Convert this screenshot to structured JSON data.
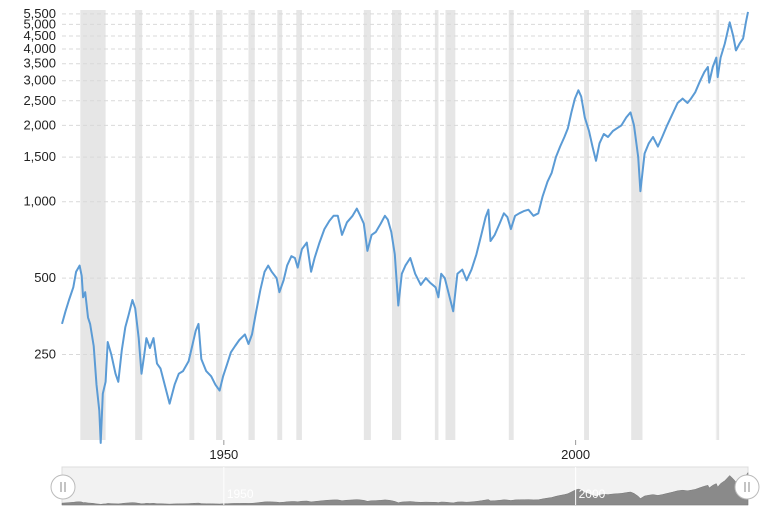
{
  "chart_data": {
    "type": "line",
    "title": "",
    "xlabel": "",
    "ylabel": "",
    "yscale": "log",
    "xlim": [
      1927,
      2024.5
    ],
    "ylim": [
      115,
      5700
    ],
    "grid": true,
    "legend": "none",
    "colors": {
      "line": "#5b9bd5",
      "recession": "#e6e6e6",
      "grid": "#d9d9d9",
      "navigator_fill": "#8a8a8a"
    },
    "y_ticks": [
      {
        "value": 250,
        "label": "250"
      },
      {
        "value": 500,
        "label": "500"
      },
      {
        "value": 1000,
        "label": "1,000"
      },
      {
        "value": 1500,
        "label": "1,500"
      },
      {
        "value": 2000,
        "label": "2,000"
      },
      {
        "value": 2500,
        "label": "2,500"
      },
      {
        "value": 3000,
        "label": "3,000"
      },
      {
        "value": 3500,
        "label": "3,500"
      },
      {
        "value": 4000,
        "label": "4,000"
      },
      {
        "value": 4500,
        "label": "4,500"
      },
      {
        "value": 5000,
        "label": "5,000"
      },
      {
        "value": 5500,
        "label": "5,500"
      }
    ],
    "x_ticks": [
      {
        "value": 1950,
        "label": "1950"
      },
      {
        "value": 2000,
        "label": "2000"
      }
    ],
    "navigator_ticks": [
      {
        "value": 1950,
        "label": "1950"
      },
      {
        "value": 2000,
        "label": "2000"
      }
    ],
    "recessions": [
      [
        1929.6,
        1933.2
      ],
      [
        1937.4,
        1938.4
      ],
      [
        1945.1,
        1945.8
      ],
      [
        1948.9,
        1949.8
      ],
      [
        1953.5,
        1954.4
      ],
      [
        1957.6,
        1958.3
      ],
      [
        1960.3,
        1961.1
      ],
      [
        1969.9,
        1970.9
      ],
      [
        1973.9,
        1975.2
      ],
      [
        1980.0,
        1980.5
      ],
      [
        1981.5,
        1982.9
      ],
      [
        1990.5,
        1991.2
      ],
      [
        2001.2,
        2001.9
      ],
      [
        2007.9,
        2009.5
      ],
      [
        2020.1,
        2020.4
      ]
    ],
    "series": [
      {
        "points": [
          [
            1927.0,
            330
          ],
          [
            1927.5,
            370
          ],
          [
            1928.0,
            410
          ],
          [
            1928.6,
            460
          ],
          [
            1929.0,
            530
          ],
          [
            1929.5,
            560
          ],
          [
            1929.8,
            510
          ],
          [
            1930.0,
            420
          ],
          [
            1930.3,
            440
          ],
          [
            1930.7,
            350
          ],
          [
            1931.0,
            330
          ],
          [
            1931.5,
            270
          ],
          [
            1931.9,
            190
          ],
          [
            1932.3,
            150
          ],
          [
            1932.5,
            112
          ],
          [
            1932.8,
            175
          ],
          [
            1933.2,
            195
          ],
          [
            1933.5,
            280
          ],
          [
            1934.0,
            250
          ],
          [
            1934.6,
            210
          ],
          [
            1935.0,
            195
          ],
          [
            1935.5,
            260
          ],
          [
            1936.0,
            320
          ],
          [
            1936.5,
            360
          ],
          [
            1937.0,
            410
          ],
          [
            1937.4,
            380
          ],
          [
            1937.9,
            290
          ],
          [
            1938.3,
            210
          ],
          [
            1938.7,
            250
          ],
          [
            1939.0,
            290
          ],
          [
            1939.5,
            265
          ],
          [
            1940.0,
            290
          ],
          [
            1940.5,
            230
          ],
          [
            1941.0,
            220
          ],
          [
            1941.6,
            190
          ],
          [
            1942.3,
            160
          ],
          [
            1943.0,
            190
          ],
          [
            1943.6,
            210
          ],
          [
            1944.2,
            215
          ],
          [
            1945.0,
            235
          ],
          [
            1945.5,
            270
          ],
          [
            1946.0,
            310
          ],
          [
            1946.4,
            330
          ],
          [
            1946.8,
            240
          ],
          [
            1947.5,
            215
          ],
          [
            1948.2,
            205
          ],
          [
            1948.8,
            190
          ],
          [
            1949.4,
            180
          ],
          [
            1949.9,
            205
          ],
          [
            1950.5,
            230
          ],
          [
            1951.0,
            255
          ],
          [
            1951.6,
            270
          ],
          [
            1952.2,
            285
          ],
          [
            1953.0,
            300
          ],
          [
            1953.5,
            275
          ],
          [
            1954.0,
            300
          ],
          [
            1954.6,
            370
          ],
          [
            1955.2,
            450
          ],
          [
            1955.8,
            530
          ],
          [
            1956.3,
            560
          ],
          [
            1956.8,
            530
          ],
          [
            1957.5,
            500
          ],
          [
            1957.9,
            440
          ],
          [
            1958.5,
            490
          ],
          [
            1959.0,
            560
          ],
          [
            1959.6,
            610
          ],
          [
            1960.1,
            600
          ],
          [
            1960.5,
            550
          ],
          [
            1961.1,
            650
          ],
          [
            1961.8,
            690
          ],
          [
            1962.4,
            530
          ],
          [
            1962.9,
            600
          ],
          [
            1963.6,
            690
          ],
          [
            1964.3,
            780
          ],
          [
            1965.0,
            840
          ],
          [
            1965.6,
            880
          ],
          [
            1966.2,
            880
          ],
          [
            1966.8,
            740
          ],
          [
            1967.5,
            830
          ],
          [
            1968.3,
            880
          ],
          [
            1968.9,
            940
          ],
          [
            1969.4,
            880
          ],
          [
            1969.9,
            820
          ],
          [
            1970.4,
            640
          ],
          [
            1971.0,
            740
          ],
          [
            1971.6,
            760
          ],
          [
            1972.3,
            820
          ],
          [
            1972.9,
            880
          ],
          [
            1973.3,
            850
          ],
          [
            1973.8,
            760
          ],
          [
            1974.3,
            620
          ],
          [
            1974.8,
            390
          ],
          [
            1975.3,
            520
          ],
          [
            1975.8,
            560
          ],
          [
            1976.5,
            600
          ],
          [
            1977.2,
            520
          ],
          [
            1978.0,
            470
          ],
          [
            1978.7,
            500
          ],
          [
            1979.3,
            480
          ],
          [
            1980.1,
            460
          ],
          [
            1980.5,
            420
          ],
          [
            1980.9,
            520
          ],
          [
            1981.4,
            500
          ],
          [
            1982.0,
            430
          ],
          [
            1982.6,
            370
          ],
          [
            1983.2,
            520
          ],
          [
            1983.9,
            540
          ],
          [
            1984.5,
            490
          ],
          [
            1985.2,
            540
          ],
          [
            1985.9,
            620
          ],
          [
            1986.6,
            740
          ],
          [
            1987.2,
            870
          ],
          [
            1987.6,
            930
          ],
          [
            1987.9,
            700
          ],
          [
            1988.5,
            740
          ],
          [
            1989.2,
            820
          ],
          [
            1989.8,
            900
          ],
          [
            1990.3,
            870
          ],
          [
            1990.8,
            780
          ],
          [
            1991.4,
            880
          ],
          [
            1992.0,
            900
          ],
          [
            1992.7,
            920
          ],
          [
            1993.3,
            930
          ],
          [
            1994.0,
            880
          ],
          [
            1994.7,
            900
          ],
          [
            1995.3,
            1050
          ],
          [
            1996.0,
            1200
          ],
          [
            1996.6,
            1300
          ],
          [
            1997.2,
            1500
          ],
          [
            1997.8,
            1650
          ],
          [
            1998.4,
            1800
          ],
          [
            1998.9,
            1950
          ],
          [
            1999.4,
            2250
          ],
          [
            1999.9,
            2550
          ],
          [
            2000.4,
            2750
          ],
          [
            2000.8,
            2600
          ],
          [
            2001.3,
            2150
          ],
          [
            2001.9,
            1900
          ],
          [
            2002.4,
            1650
          ],
          [
            2002.9,
            1450
          ],
          [
            2003.4,
            1700
          ],
          [
            2004.0,
            1850
          ],
          [
            2004.6,
            1800
          ],
          [
            2005.3,
            1900
          ],
          [
            2005.9,
            1950
          ],
          [
            2006.5,
            2000
          ],
          [
            2007.2,
            2150
          ],
          [
            2007.8,
            2250
          ],
          [
            2008.3,
            2000
          ],
          [
            2008.9,
            1500
          ],
          [
            2009.2,
            1100
          ],
          [
            2009.8,
            1550
          ],
          [
            2010.4,
            1700
          ],
          [
            2011.0,
            1800
          ],
          [
            2011.7,
            1650
          ],
          [
            2012.3,
            1800
          ],
          [
            2013.0,
            2000
          ],
          [
            2013.7,
            2200
          ],
          [
            2014.5,
            2450
          ],
          [
            2015.2,
            2550
          ],
          [
            2015.9,
            2450
          ],
          [
            2016.4,
            2550
          ],
          [
            2017.0,
            2700
          ],
          [
            2017.7,
            3000
          ],
          [
            2018.3,
            3250
          ],
          [
            2018.8,
            3400
          ],
          [
            2018.99,
            2950
          ],
          [
            2019.5,
            3400
          ],
          [
            2020.0,
            3700
          ],
          [
            2020.2,
            3100
          ],
          [
            2020.6,
            3700
          ],
          [
            2021.2,
            4200
          ],
          [
            2021.9,
            5100
          ],
          [
            2022.4,
            4500
          ],
          [
            2022.8,
            3950
          ],
          [
            2023.3,
            4200
          ],
          [
            2023.8,
            4400
          ],
          [
            2024.2,
            5100
          ],
          [
            2024.5,
            5600
          ]
        ]
      }
    ]
  }
}
